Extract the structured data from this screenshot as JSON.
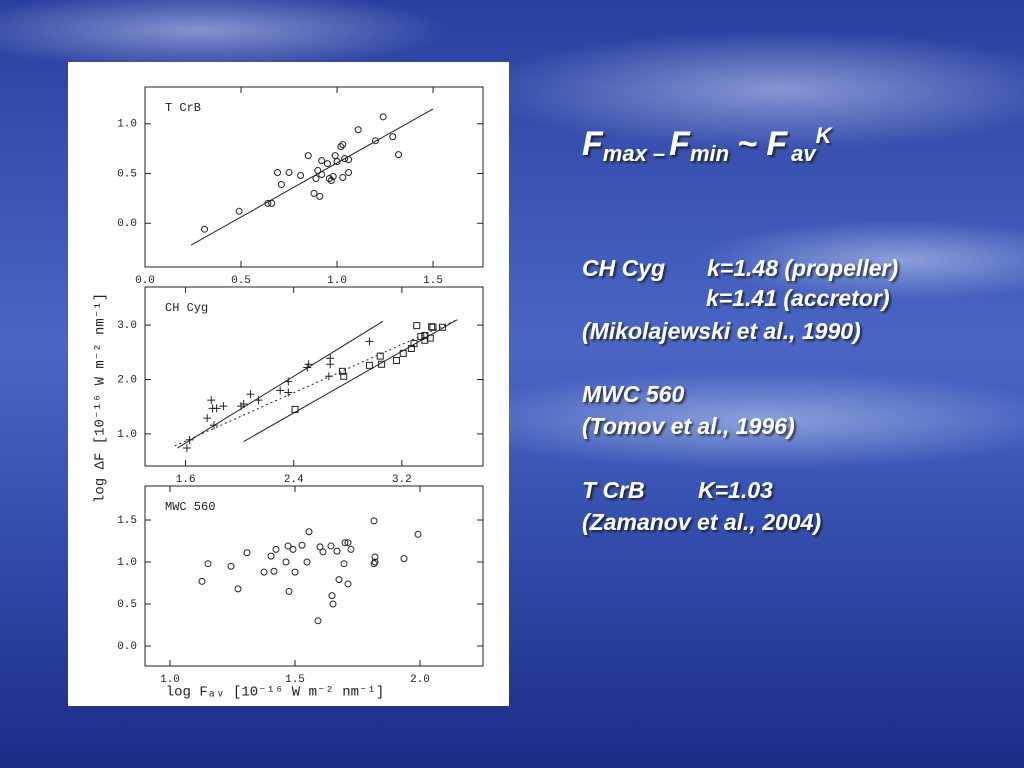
{
  "slide": {
    "title": [
      "F",
      "max –",
      "F",
      "min",
      "~ F",
      "av",
      "K"
    ],
    "lines": [
      "CH Cyg",
      "k=1.48 (propeller)",
      "k=1.41 (accretor)",
      "(Mikolajewski et al., 1990)",
      "MWC 560",
      "(Tomov et al., 1996)",
      "T CrB",
      "K=1.03",
      "(Zamanov et al., 2004)"
    ]
  },
  "figure": {
    "y_label": "log ΔF [10⁻¹⁶ W m⁻² nm⁻¹]",
    "x_label": "log Fₐᵥ [10⁻¹⁶ W m⁻² nm⁻¹]"
  },
  "chart_data": [
    {
      "type": "scatter",
      "title": "T CrB",
      "xlim": [
        0,
        1.76
      ],
      "ylim": [
        -0.44,
        1.37
      ],
      "xticks": [
        {
          "value": 0,
          "label": "0.0"
        },
        {
          "value": 0.5,
          "label": "0.5"
        },
        {
          "value": 1,
          "label": "1.0"
        },
        {
          "value": 1.5,
          "label": "1.5"
        }
      ],
      "yticks": [
        {
          "value": 0,
          "label": "0.0"
        },
        {
          "value": 0.5,
          "label": "0.5"
        },
        {
          "value": 1,
          "label": "1.0"
        }
      ],
      "series": [
        {
          "marker": "circle",
          "color": "#222222",
          "x": [
            0.31,
            0.49,
            0.64,
            0.66,
            0.69,
            0.71,
            0.75,
            0.81,
            0.85,
            0.88,
            0.89,
            0.9,
            0.91,
            0.92,
            0.92,
            0.95,
            0.96,
            0.97,
            0.98,
            0.99,
            1.0,
            1.02,
            1.03,
            1.04,
            1.03,
            1.06,
            1.06,
            1.11,
            1.2,
            1.24,
            1.29,
            1.32
          ],
          "values": [
            -0.06,
            0.12,
            0.2,
            0.2,
            0.51,
            0.39,
            0.51,
            0.48,
            0.68,
            0.3,
            0.45,
            0.53,
            0.27,
            0.63,
            0.49,
            0.6,
            0.45,
            0.43,
            0.47,
            0.68,
            0.62,
            0.77,
            0.79,
            0.65,
            0.46,
            0.51,
            0.64,
            0.94,
            0.83,
            1.07,
            0.87,
            0.69
          ]
        }
      ],
      "lines": [
        {
          "style": "solid",
          "x": [
            0.24,
            1.5
          ],
          "values": [
            -0.22,
            1.15
          ]
        }
      ]
    },
    {
      "type": "scatter",
      "title": "CH Cyg",
      "xlim": [
        1.3,
        3.8
      ],
      "ylim": [
        0.41,
        3.7
      ],
      "xticks": [
        1.6,
        2.4,
        3.2
      ],
      "yticks": [
        {
          "value": 1,
          "label": "1.0"
        },
        {
          "value": 2,
          "label": "2.0"
        },
        {
          "value": 3,
          "label": "3.0"
        }
      ],
      "series": [
        {
          "marker": "plus",
          "color": "#222222",
          "x": [
            1.61,
            1.63,
            1.76,
            1.79,
            1.8,
            1.83,
            1.81,
            1.88,
            2.01,
            2.03,
            2.08,
            2.14,
            2.3,
            2.36,
            2.36,
            2.5,
            2.51,
            2.66,
            2.67,
            2.67,
            2.96
          ],
          "values": [
            0.74,
            0.89,
            1.29,
            1.62,
            1.47,
            1.47,
            1.16,
            1.51,
            1.51,
            1.55,
            1.73,
            1.62,
            1.8,
            1.96,
            1.76,
            2.22,
            2.28,
            2.06,
            2.28,
            2.39,
            2.7
          ]
        },
        {
          "marker": "square",
          "color": "#222222",
          "x": [
            2.41,
            2.76,
            2.77,
            2.96,
            3.04,
            3.05,
            3.16,
            3.21,
            3.27,
            3.29,
            3.31,
            3.34,
            3.37,
            3.37,
            3.42,
            3.43,
            3.5,
            3.41
          ],
          "values": [
            1.45,
            2.15,
            2.06,
            2.26,
            2.43,
            2.28,
            2.35,
            2.48,
            2.57,
            2.66,
            2.99,
            2.79,
            2.81,
            2.72,
            2.97,
            2.96,
            2.96,
            2.76
          ]
        }
      ],
      "lines": [
        {
          "style": "solid",
          "x": [
            1.54,
            3.06
          ],
          "values": [
            0.74,
            3.07
          ]
        },
        {
          "style": "solid",
          "x": [
            2.03,
            3.61
          ],
          "values": [
            0.86,
            3.1
          ]
        },
        {
          "style": "dotted",
          "x": [
            1.52,
            3.61
          ],
          "values": [
            0.78,
            3.1
          ]
        }
      ]
    },
    {
      "type": "scatter",
      "title": "MWC 560",
      "xlim": [
        0.9,
        2.252
      ],
      "ylim": [
        -0.238,
        1.905
      ],
      "xticks": [
        {
          "value": 1,
          "label": "1.0"
        },
        {
          "value": 1.5,
          "label": "1.5"
        },
        {
          "value": 2,
          "label": "2.0"
        }
      ],
      "yticks": [
        {
          "value": 0,
          "label": "0.0"
        },
        {
          "value": 0.5,
          "label": "0.5"
        },
        {
          "value": 1,
          "label": "1.0"
        },
        {
          "value": 1.5,
          "label": "1.5"
        }
      ],
      "series": [
        {
          "marker": "circle",
          "color": "#222222",
          "x": [
            1.128,
            1.152,
            1.244,
            1.272,
            1.308,
            1.376,
            1.404,
            1.416,
            1.424,
            1.464,
            1.472,
            1.476,
            1.492,
            1.5,
            1.528,
            1.548,
            1.556,
            1.592,
            1.6,
            1.612,
            1.644,
            1.648,
            1.652,
            1.668,
            1.676,
            1.696,
            1.7,
            1.712,
            1.712,
            1.724,
            1.816,
            1.816,
            1.82,
            1.82,
            1.936,
            1.992
          ],
          "values": [
            0.77,
            0.98,
            0.95,
            0.68,
            1.11,
            0.88,
            1.07,
            0.89,
            1.15,
            1.0,
            1.19,
            0.65,
            1.15,
            0.88,
            1.2,
            1.0,
            1.36,
            0.3,
            1.18,
            1.12,
            1.19,
            0.6,
            0.5,
            1.13,
            0.79,
            0.98,
            1.23,
            1.23,
            0.74,
            1.15,
            0.98,
            1.49,
            1.06,
            1.0,
            1.04,
            1.33
          ]
        }
      ],
      "lines": []
    }
  ]
}
